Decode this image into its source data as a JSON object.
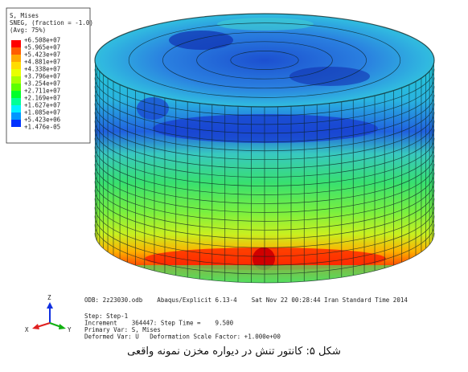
{
  "legend": {
    "title_lines": [
      "S, Mises",
      "SNEG, (fraction = -1.0)",
      "(Avg: 75%)"
    ],
    "labels": [
      "+6.508e+07",
      "+5.965e+07",
      "+5.423e+07",
      "+4.881e+07",
      "+4.338e+07",
      "+3.796e+07",
      "+3.254e+07",
      "+2.711e+07",
      "+2.169e+07",
      "+1.627e+07",
      "+1.085e+07",
      "+5.423e+06",
      "+1.476e-05"
    ],
    "colors": [
      "#ff0000",
      "#ff5c00",
      "#ffa800",
      "#ffdc00",
      "#e8ff00",
      "#a8ff00",
      "#5cff00",
      "#00ff2a",
      "#00ff96",
      "#00f0ff",
      "#0096ff",
      "#0032ff"
    ]
  },
  "info": {
    "odb_line": "ODB: 2z23030.odb    Abaqus/Explicit 6.13-4    Sat Nov 22 00:28:44 Iran Standard Time 2014",
    "lines": [
      "Step: Step-1",
      "Increment    364447: Step Time =    9.500",
      "Primary Var: S, Mises",
      "Deformed Var: U   Deformation Scale Factor: +1.000e+00"
    ]
  },
  "triad": {
    "z": "Z",
    "x": "X",
    "y": "Y"
  },
  "caption": "شکل ۵: کانتور تنش در دیواره مخزن نمونه واقعی"
}
